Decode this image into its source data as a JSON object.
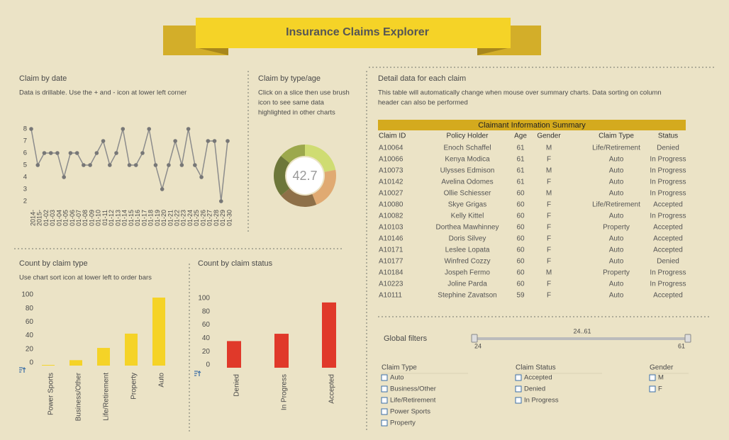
{
  "header": {
    "title": "Insurance Claims Explorer"
  },
  "chart_data": [
    {
      "type": "line",
      "title": "Claim by date",
      "subtitle": [
        "Data is drillable. Use the + and - icon at lower left corner"
      ],
      "categories": [
        "2014-",
        "2015-",
        "01-02",
        "01-03",
        "01-04",
        "01-05",
        "01-06",
        "01-07",
        "01-08",
        "01-09",
        "01-10",
        "01-11",
        "01-12",
        "01-13",
        "01-14",
        "01-15",
        "01-16",
        "01-17",
        "01-18",
        "01-19",
        "01-20",
        "01-21",
        "01-22",
        "01-23",
        "01-24",
        "01-25",
        "01-26",
        "01-27",
        "01-28",
        "01-29",
        "01-30"
      ],
      "values": [
        8,
        5,
        6,
        6,
        6,
        4,
        6,
        6,
        5,
        5,
        6,
        7,
        5,
        6,
        8,
        5,
        5,
        6,
        8,
        5,
        3,
        5,
        7,
        5,
        8,
        5,
        4,
        7,
        7,
        2,
        7
      ],
      "color": "#8c8c8c",
      "ylim": [
        1.8,
        8.2
      ],
      "yticks": [
        2,
        3,
        4,
        5,
        6,
        7,
        8
      ]
    },
    {
      "type": "pie",
      "title": "Claim by type/age",
      "subtitle": [
        "Click on a slice then use brush",
        "icon to see same data",
        "highlighted in other charts"
      ],
      "values": [
        22,
        22,
        20,
        22,
        14
      ],
      "colors": [
        "#cfdc72",
        "#e0aa72",
        "#8e7048",
        "#6d773a",
        "#9ca84c"
      ],
      "center_value": 42.7
    },
    {
      "type": "bar",
      "title": "Count by claim type",
      "subtitle": [
        "Use chart sort icon at lower left to order bars"
      ],
      "categories": [
        "Power Sports",
        "Business/Other",
        "Life/Retirement",
        "Property",
        "Auto"
      ],
      "values": [
        1,
        8,
        26,
        47,
        100
      ],
      "color": "#f5d327",
      "ylim": [
        0,
        100
      ],
      "yticks": [
        0,
        20,
        40,
        60,
        80,
        100
      ]
    },
    {
      "type": "bar",
      "title": "Count by claim status",
      "subtitle": [],
      "categories": [
        "Denied",
        "In Progress",
        "Accepted"
      ],
      "values": [
        40,
        51,
        98
      ],
      "color": "#e0392a",
      "ylim": [
        0,
        100
      ],
      "yticks": [
        0,
        20,
        40,
        60,
        80,
        100
      ]
    }
  ],
  "detail": {
    "title": "Detail data for each claim",
    "description": [
      "This table will automatically change when mouse over summary charts. Data sorting on column",
      "header can also be performed"
    ]
  },
  "table": {
    "title": "Claimant Information Summary",
    "columns": [
      "Claim ID",
      "Policy Holder",
      "Age",
      "Gender",
      "Claim Type",
      "Status"
    ],
    "rows": [
      [
        "A10064",
        "Enoch Schaffel",
        "61",
        "M",
        "Life/Retirement",
        "Denied"
      ],
      [
        "A10066",
        "Kenya Modica",
        "61",
        "F",
        "Auto",
        "In Progress"
      ],
      [
        "A10073",
        "Ulysses Edmison",
        "61",
        "M",
        "Auto",
        "In Progress"
      ],
      [
        "A10142",
        "Avelina Odomes",
        "61",
        "F",
        "Auto",
        "In Progress"
      ],
      [
        "A10027",
        "Ollie Schiesser",
        "60",
        "M",
        "Auto",
        "In Progress"
      ],
      [
        "A10080",
        "Skye Grigas",
        "60",
        "F",
        "Life/Retirement",
        "Accepted"
      ],
      [
        "A10082",
        "Kelly Kittel",
        "60",
        "F",
        "Auto",
        "In Progress"
      ],
      [
        "A10103",
        "Dorthea Mawhinney",
        "60",
        "F",
        "Property",
        "Accepted"
      ],
      [
        "A10146",
        "Doris Silvey",
        "60",
        "F",
        "Auto",
        "Accepted"
      ],
      [
        "A10171",
        "Leslee Lopata",
        "60",
        "F",
        "Auto",
        "Accepted"
      ],
      [
        "A10177",
        "Winfred Cozzy",
        "60",
        "F",
        "Auto",
        "Denied"
      ],
      [
        "A10184",
        "Jospeh Fermo",
        "60",
        "M",
        "Property",
        "In Progress"
      ],
      [
        "A10223",
        "Joline Parda",
        "60",
        "F",
        "Auto",
        "In Progress"
      ],
      [
        "A10111",
        "Stephine Zavatson",
        "59",
        "F",
        "Auto",
        "Accepted"
      ]
    ]
  },
  "filters": {
    "title": "Global filters",
    "range": {
      "label": "24..61",
      "min": 24,
      "max": 61
    },
    "groups": [
      {
        "title": "Claim Type",
        "options": [
          "Auto",
          "Business/Other",
          "Life/Retirement",
          "Power Sports",
          "Property"
        ]
      },
      {
        "title": "Claim Status",
        "options": [
          "Accepted",
          "Denied",
          "In Progress"
        ]
      },
      {
        "title": "Gender",
        "options": [
          "M",
          "F"
        ]
      }
    ]
  }
}
